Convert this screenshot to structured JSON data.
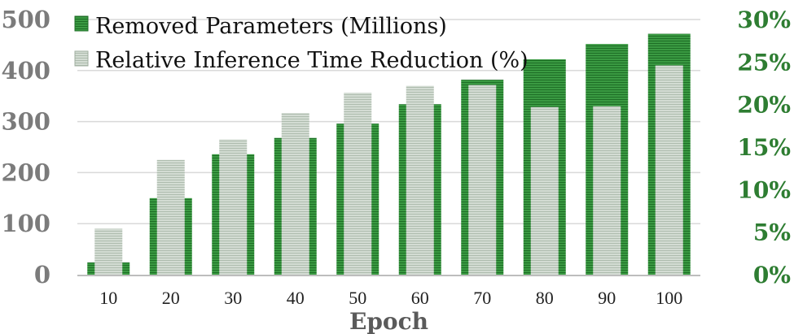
{
  "chart_data": {
    "type": "bar",
    "categories": [
      "10",
      "20",
      "30",
      "40",
      "50",
      "60",
      "70",
      "80",
      "90",
      "100"
    ],
    "series": [
      {
        "name": "Removed Parameters (Millions)",
        "axis": "left",
        "color": "#2e8b36",
        "values": [
          24,
          150,
          236,
          268,
          296,
          334,
          382,
          422,
          452,
          472
        ]
      },
      {
        "name": "Relative Inference Time Reduction (%)",
        "axis": "right",
        "color": "#c8d3c8",
        "values": [
          5.4,
          13.5,
          15.9,
          19.0,
          21.4,
          22.2,
          22.3,
          19.7,
          19.8,
          24.6
        ]
      }
    ],
    "xlabel": "Epoch",
    "ylabel": "",
    "ylim": [
      0,
      500
    ],
    "y2lim": [
      0,
      30
    ],
    "yticks": [
      "0",
      "100",
      "200",
      "300",
      "400",
      "500"
    ],
    "y2ticks": [
      "0%",
      "5%",
      "10%",
      "15%",
      "20%",
      "25%",
      "30%"
    ],
    "grid": true,
    "legend_position": "top-left"
  }
}
